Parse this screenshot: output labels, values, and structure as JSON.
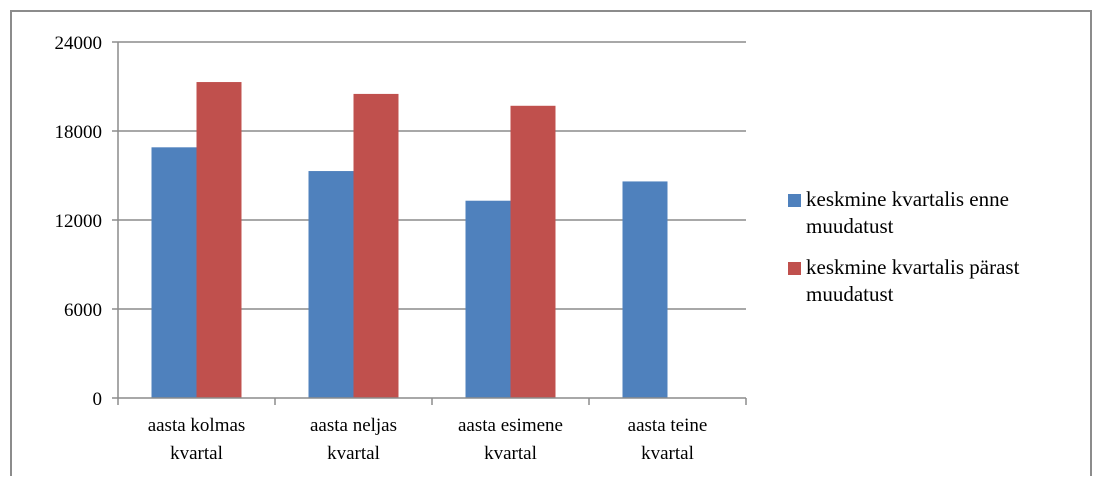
{
  "chart_data": {
    "type": "bar",
    "categories": [
      [
        "aasta kolmas",
        "kvartal"
      ],
      [
        "aasta neljas",
        "kvartal"
      ],
      [
        "aasta esimene",
        "kvartal"
      ],
      [
        "aasta teine",
        "kvartal"
      ]
    ],
    "series": [
      {
        "name": "keskmine kvartalis enne muudatust",
        "color": "#4f81bd",
        "values": [
          16900,
          15300,
          13300,
          14600
        ]
      },
      {
        "name": "keskmine kvartalis pärast muudatust",
        "color": "#c0504d",
        "values": [
          21300,
          20500,
          19700,
          null
        ]
      }
    ],
    "ylim": [
      0,
      24000
    ],
    "yticks": [
      0,
      6000,
      12000,
      18000,
      24000
    ],
    "ytick_labels": [
      "0",
      "6000",
      "12000",
      "18000",
      "24000"
    ],
    "grid": true,
    "legend_position": "right",
    "title": "",
    "xlabel": "",
    "ylabel": ""
  },
  "legend": {
    "items": [
      {
        "label_line1": "keskmine kvartalis enne",
        "label_line2": "muudatust",
        "color": "#4f81bd"
      },
      {
        "label_line1": "keskmine kvartalis pärast",
        "label_line2": "muudatust",
        "color": "#c0504d"
      }
    ]
  }
}
